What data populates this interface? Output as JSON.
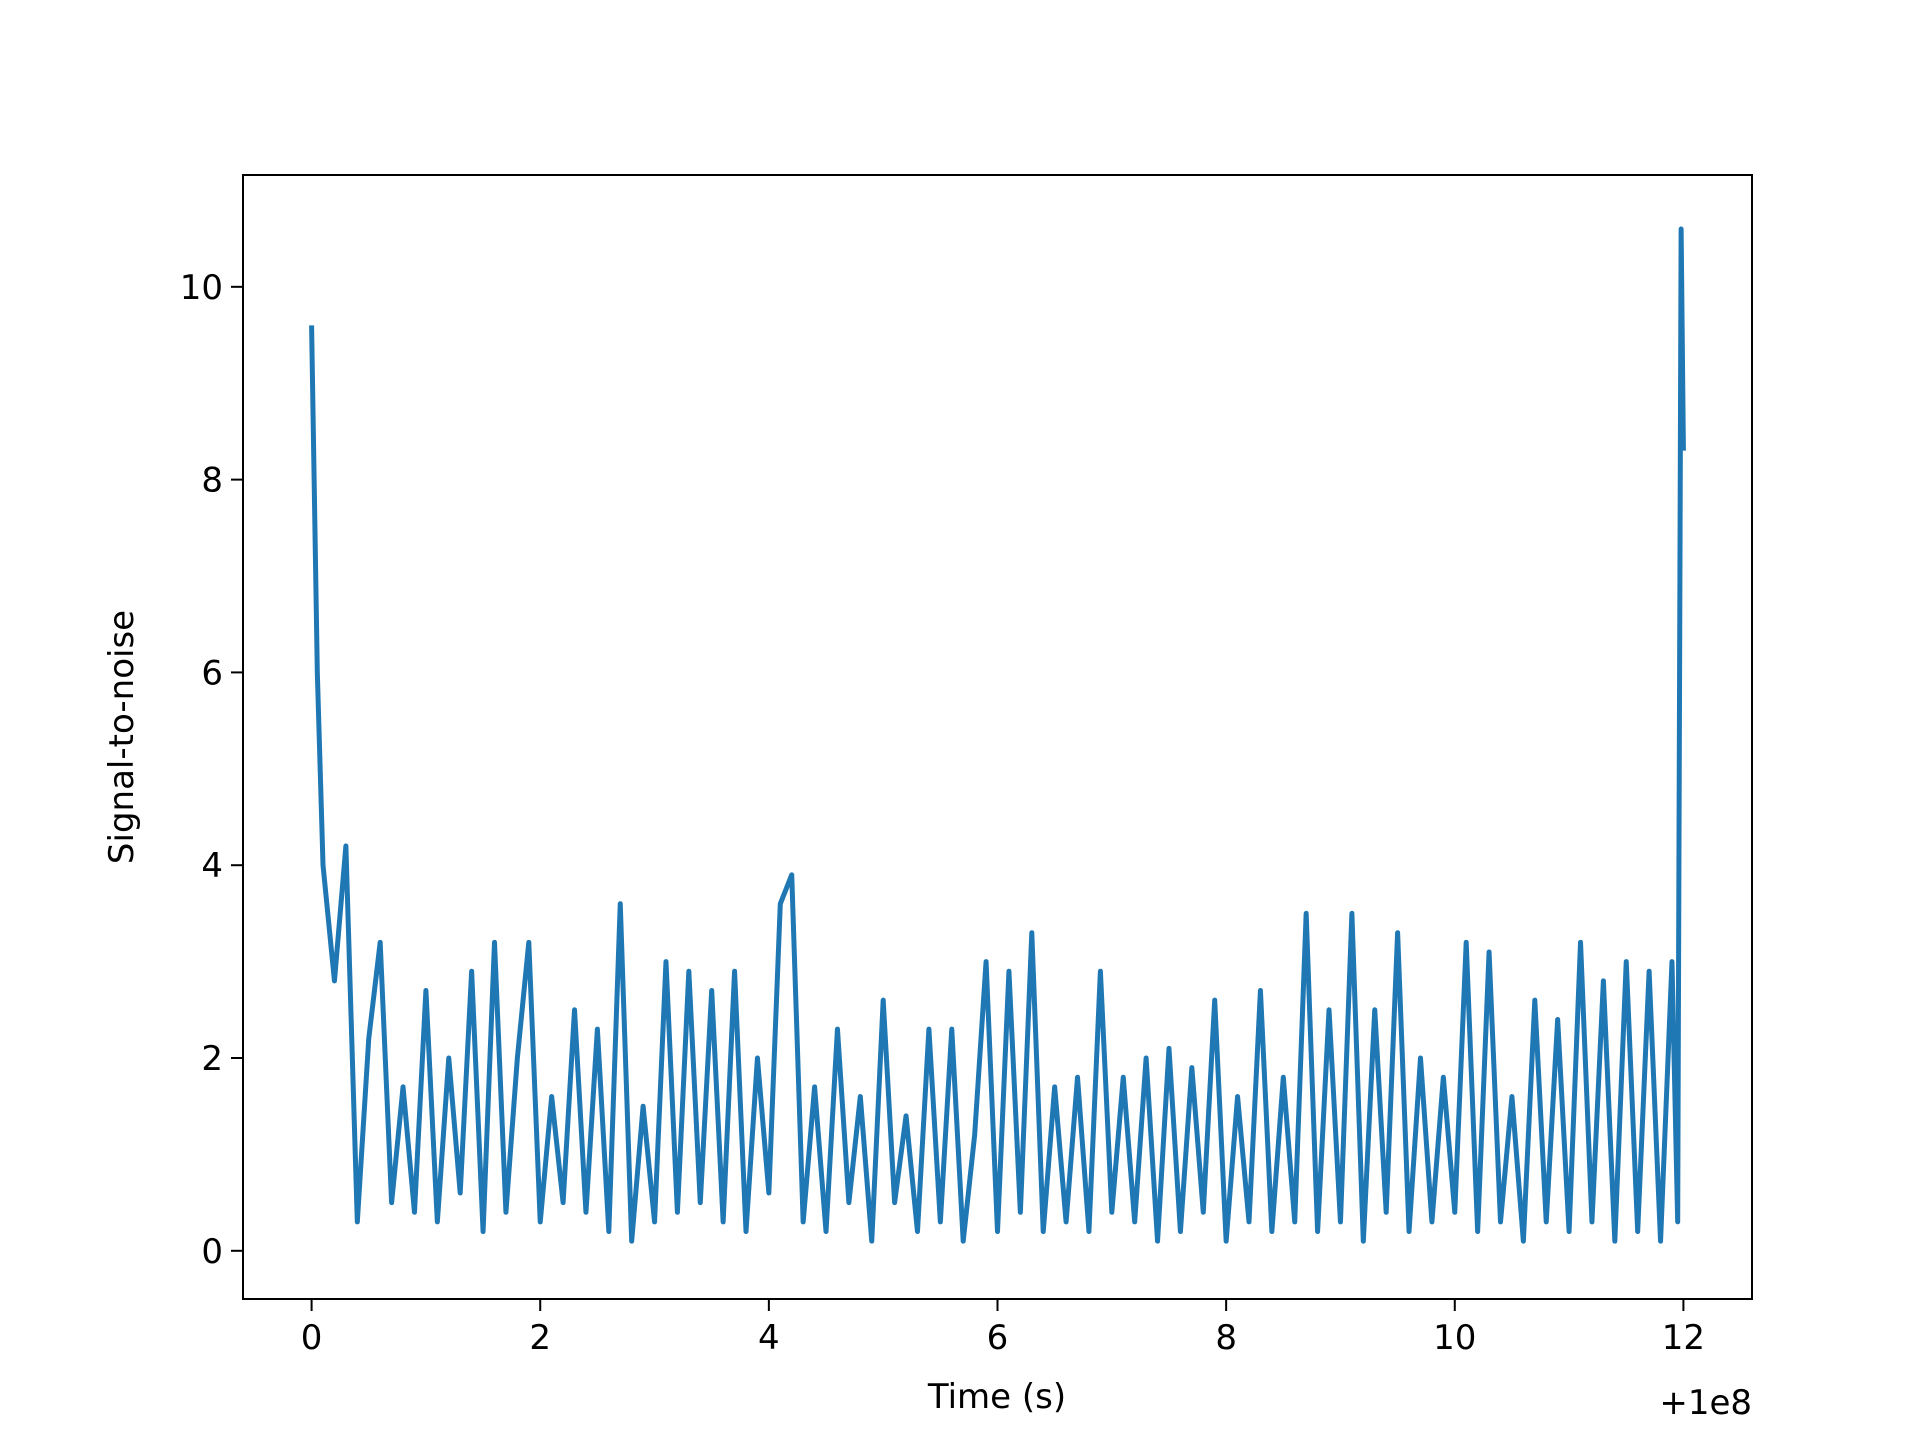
{
  "chart_data": {
    "type": "line",
    "xlabel": "Time (s)",
    "ylabel": "Signal-to-noise",
    "offset_text": "+1e8",
    "x": [
      0.0,
      0.05,
      0.1,
      0.2,
      0.3,
      0.4,
      0.5,
      0.6,
      0.7,
      0.8,
      0.9,
      1.0,
      1.1,
      1.2,
      1.3,
      1.4,
      1.5,
      1.6,
      1.7,
      1.8,
      1.9,
      2.0,
      2.1,
      2.2,
      2.3,
      2.4,
      2.5,
      2.6,
      2.7,
      2.8,
      2.9,
      3.0,
      3.1,
      3.2,
      3.3,
      3.4,
      3.5,
      3.6,
      3.7,
      3.8,
      3.9,
      4.0,
      4.1,
      4.2,
      4.3,
      4.4,
      4.5,
      4.6,
      4.7,
      4.8,
      4.9,
      5.0,
      5.1,
      5.2,
      5.3,
      5.4,
      5.5,
      5.6,
      5.7,
      5.8,
      5.9,
      6.0,
      6.1,
      6.2,
      6.3,
      6.4,
      6.5,
      6.6,
      6.7,
      6.8,
      6.9,
      7.0,
      7.1,
      7.2,
      7.3,
      7.4,
      7.5,
      7.6,
      7.7,
      7.8,
      7.9,
      8.0,
      8.1,
      8.2,
      8.3,
      8.4,
      8.5,
      8.6,
      8.7,
      8.8,
      8.9,
      9.0,
      9.1,
      9.2,
      9.3,
      9.4,
      9.5,
      9.6,
      9.7,
      9.8,
      9.9,
      10.0,
      10.1,
      10.2,
      10.3,
      10.4,
      10.5,
      10.6,
      10.7,
      10.8,
      10.9,
      11.0,
      11.1,
      11.2,
      11.3,
      11.4,
      11.5,
      11.6,
      11.7,
      11.8,
      11.9,
      11.95,
      11.98,
      12.0
    ],
    "series": [
      {
        "color": "#1f77b4",
        "values": [
          9.6,
          6.0,
          4.0,
          2.8,
          4.2,
          0.3,
          2.2,
          3.2,
          0.5,
          1.7,
          0.4,
          2.7,
          0.3,
          2.0,
          0.6,
          2.9,
          0.2,
          3.2,
          0.4,
          2.0,
          3.2,
          0.3,
          1.6,
          0.5,
          2.5,
          0.4,
          2.3,
          0.2,
          3.6,
          0.1,
          1.5,
          0.3,
          3.0,
          0.4,
          2.9,
          0.5,
          2.7,
          0.3,
          2.9,
          0.2,
          2.0,
          0.6,
          3.6,
          3.9,
          0.3,
          1.7,
          0.2,
          2.3,
          0.5,
          1.6,
          0.1,
          2.6,
          0.5,
          1.4,
          0.2,
          2.3,
          0.3,
          2.3,
          0.1,
          1.2,
          3.0,
          0.2,
          2.9,
          0.4,
          3.3,
          0.2,
          1.7,
          0.3,
          1.8,
          0.2,
          2.9,
          0.4,
          1.8,
          0.3,
          2.0,
          0.1,
          2.1,
          0.2,
          1.9,
          0.4,
          2.6,
          0.1,
          1.6,
          0.3,
          2.7,
          0.2,
          1.8,
          0.3,
          3.5,
          0.2,
          2.5,
          0.3,
          3.5,
          0.1,
          2.5,
          0.4,
          3.3,
          0.2,
          2.0,
          0.3,
          1.8,
          0.4,
          3.2,
          0.2,
          3.1,
          0.3,
          1.6,
          0.1,
          2.6,
          0.3,
          2.4,
          0.2,
          3.2,
          0.3,
          2.8,
          0.1,
          3.0,
          0.2,
          2.9,
          0.1,
          3.0,
          0.3,
          10.6,
          8.3
        ]
      }
    ],
    "xlim": [
      -0.6,
      12.6
    ],
    "ylim": [
      -0.5,
      11.16
    ],
    "xticks": [
      0,
      2,
      4,
      6,
      8,
      10,
      12
    ],
    "yticks": [
      0,
      2,
      4,
      6,
      8,
      10
    ]
  }
}
